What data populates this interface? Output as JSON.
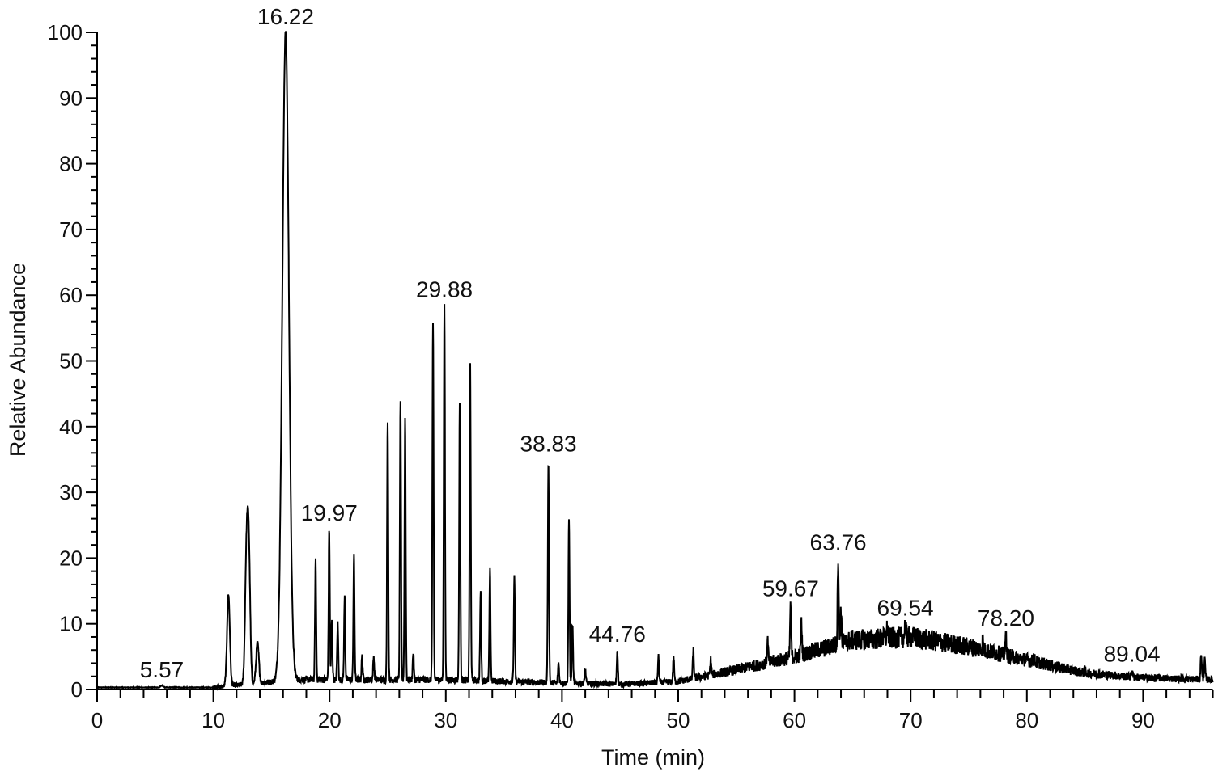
{
  "chart_data": {
    "type": "line",
    "title": "",
    "xlabel": "Time (min)",
    "ylabel": "Relative Abundance",
    "xlim": [
      0,
      96
    ],
    "ylim": [
      0,
      100
    ],
    "x_ticks": [
      0,
      10,
      20,
      30,
      40,
      50,
      60,
      70,
      80,
      90
    ],
    "y_ticks": [
      0,
      10,
      20,
      30,
      40,
      50,
      60,
      70,
      80,
      90,
      100
    ],
    "grid": false,
    "line_color": "#000000",
    "baseline": [
      [
        0,
        0.3
      ],
      [
        10,
        0.3
      ],
      [
        17,
        1.5
      ],
      [
        30,
        1.5
      ],
      [
        40,
        1.0
      ],
      [
        45,
        0.8
      ],
      [
        50,
        1.2
      ],
      [
        55,
        3
      ],
      [
        60,
        5
      ],
      [
        65,
        7.5
      ],
      [
        70,
        8
      ],
      [
        75,
        6.5
      ],
      [
        80,
        4.5
      ],
      [
        85,
        2.5
      ],
      [
        90,
        1.8
      ],
      [
        96,
        1.5
      ]
    ],
    "peaks": [
      {
        "rt": 5.57,
        "abundance": 0.6
      },
      {
        "rt": 11.3,
        "abundance": 14.5
      },
      {
        "rt": 12.85,
        "abundance": 19
      },
      {
        "rt": 13.05,
        "abundance": 20.5
      },
      {
        "rt": 13.8,
        "abundance": 7
      },
      {
        "rt": 16.22,
        "abundance": 100
      },
      {
        "rt": 18.8,
        "abundance": 19.5
      },
      {
        "rt": 19.97,
        "abundance": 24.5
      },
      {
        "rt": 20.2,
        "abundance": 10.5
      },
      {
        "rt": 20.7,
        "abundance": 10
      },
      {
        "rt": 21.3,
        "abundance": 14
      },
      {
        "rt": 22.1,
        "abundance": 20.5
      },
      {
        "rt": 22.8,
        "abundance": 5
      },
      {
        "rt": 23.8,
        "abundance": 5
      },
      {
        "rt": 25.0,
        "abundance": 41
      },
      {
        "rt": 26.1,
        "abundance": 44
      },
      {
        "rt": 26.5,
        "abundance": 41.5
      },
      {
        "rt": 27.2,
        "abundance": 5.5
      },
      {
        "rt": 28.9,
        "abundance": 56
      },
      {
        "rt": 29.88,
        "abundance": 58.5
      },
      {
        "rt": 31.2,
        "abundance": 43.5
      },
      {
        "rt": 32.1,
        "abundance": 49.5
      },
      {
        "rt": 33.0,
        "abundance": 15
      },
      {
        "rt": 33.8,
        "abundance": 18
      },
      {
        "rt": 35.9,
        "abundance": 17
      },
      {
        "rt": 38.83,
        "abundance": 35
      },
      {
        "rt": 39.7,
        "abundance": 4
      },
      {
        "rt": 40.6,
        "abundance": 25.5
      },
      {
        "rt": 40.9,
        "abundance": 10
      },
      {
        "rt": 42.0,
        "abundance": 3
      },
      {
        "rt": 44.76,
        "abundance": 6
      },
      {
        "rt": 48.3,
        "abundance": 5
      },
      {
        "rt": 49.6,
        "abundance": 5
      },
      {
        "rt": 51.3,
        "abundance": 6
      },
      {
        "rt": 52.8,
        "abundance": 4.5
      },
      {
        "rt": 57.7,
        "abundance": 7.5
      },
      {
        "rt": 59.67,
        "abundance": 13
      },
      {
        "rt": 60.6,
        "abundance": 10
      },
      {
        "rt": 63.76,
        "abundance": 20
      },
      {
        "rt": 64.0,
        "abundance": 12
      },
      {
        "rt": 68.0,
        "abundance": 9.5
      },
      {
        "rt": 69.54,
        "abundance": 10
      },
      {
        "rt": 76.2,
        "abundance": 7.5
      },
      {
        "rt": 78.2,
        "abundance": 8.5
      },
      {
        "rt": 80.6,
        "abundance": 5
      },
      {
        "rt": 85.0,
        "abundance": 3
      },
      {
        "rt": 89.04,
        "abundance": 3
      },
      {
        "rt": 95.0,
        "abundance": 5.5
      },
      {
        "rt": 95.3,
        "abundance": 4.5
      }
    ],
    "annotations": [
      {
        "label": "5.57",
        "rt": 5.57,
        "abundance": 0.6
      },
      {
        "label": "16.22",
        "rt": 16.22,
        "abundance": 100
      },
      {
        "label": "19.97",
        "rt": 19.97,
        "abundance": 24.5
      },
      {
        "label": "29.88",
        "rt": 29.88,
        "abundance": 58.5
      },
      {
        "label": "38.83",
        "rt": 38.83,
        "abundance": 35
      },
      {
        "label": "44.76",
        "rt": 44.76,
        "abundance": 6
      },
      {
        "label": "59.67",
        "rt": 59.67,
        "abundance": 13
      },
      {
        "label": "63.76",
        "rt": 63.76,
        "abundance": 20
      },
      {
        "label": "69.54",
        "rt": 69.54,
        "abundance": 10
      },
      {
        "label": "78.20",
        "rt": 78.2,
        "abundance": 8.5
      },
      {
        "label": "89.04",
        "rt": 89.04,
        "abundance": 3
      }
    ]
  }
}
